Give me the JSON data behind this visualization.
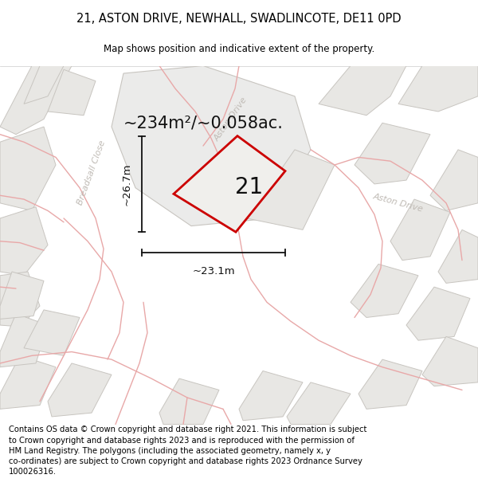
{
  "title_line1": "21, ASTON DRIVE, NEWHALL, SWADLINCOTE, DE11 0PD",
  "title_line2": "Map shows position and indicative extent of the property.",
  "footer_text": "Contains OS data © Crown copyright and database right 2021. This information is subject to Crown copyright and database rights 2023 and is reproduced with the permission of HM Land Registry. The polygons (including the associated geometry, namely x, y co-ordinates) are subject to Crown copyright and database rights 2023 Ordnance Survey 100026316.",
  "area_label": "~234m²/~0.058ac.",
  "width_label": "~23.1m",
  "height_label": "~26.7m",
  "plot_number": "21",
  "map_bg": "#f7f6f4",
  "block_fill": "#e8e7e4",
  "block_stroke": "#c8c5c0",
  "road_color": "#e8a8a8",
  "property_color": "#cc0000",
  "property_fill": "#f0efec",
  "dim_color": "#111111",
  "street_label_color": "#c0bbb5",
  "title_fontsize": 10.5,
  "subtitle_fontsize": 8.5,
  "footer_fontsize": 7.2,
  "area_fontsize": 15,
  "dim_fontsize": 9.5,
  "plot_number_fontsize": 20,
  "street_label_fontsize": 8
}
